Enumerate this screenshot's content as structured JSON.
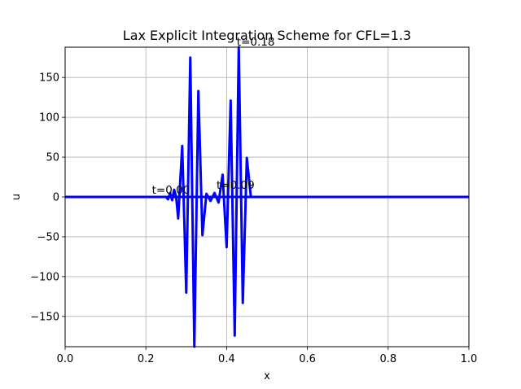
{
  "chart_data": {
    "type": "line",
    "title": "Lax Explicit Integration Scheme for  CFL=1.3",
    "xlabel": "x",
    "ylabel": "u",
    "xlim": [
      0.0,
      1.0
    ],
    "ylim": [
      -188,
      188
    ],
    "grid": true,
    "legend": "none",
    "x_ticks": [
      0.0,
      0.2,
      0.4,
      0.6,
      0.8,
      1.0
    ],
    "x_tick_labels": [
      "0.0",
      "0.2",
      "0.4",
      "0.6",
      "0.8",
      "1.0"
    ],
    "y_ticks": [
      150,
      100,
      50,
      0,
      -50,
      -100,
      -150
    ],
    "y_tick_labels": [
      "150",
      "100",
      "50",
      "0",
      "−50",
      "−100",
      "−150"
    ],
    "color": "#0000ff",
    "annotations": [
      {
        "text": "t=0.00",
        "x": 0.215,
        "y": 2
      },
      {
        "text": "t=0.09",
        "x": 0.375,
        "y": 8
      },
      {
        "text": "t=0.18",
        "x": 0.425,
        "y": 188
      }
    ],
    "series": [
      {
        "x": [
          0.0,
          0.24,
          0.25,
          0.255,
          0.26,
          0.265,
          0.27,
          0.275,
          0.28,
          0.29,
          0.3,
          0.31,
          0.32,
          0.33,
          0.34,
          0.35,
          0.36,
          0.37,
          0.38,
          0.39,
          0.4,
          0.41,
          0.42,
          0.43,
          0.44,
          0.45,
          0.46,
          1.0
        ],
        "values": [
          0,
          0,
          0,
          -3,
          5,
          -4,
          9,
          0,
          -27,
          64,
          -120,
          175,
          -188,
          133,
          -48,
          4,
          -5,
          5,
          -7,
          28,
          -63,
          121,
          -174,
          188,
          -133,
          49,
          0,
          0
        ]
      },
      {
        "x": [
          0.0,
          1.0
        ],
        "values": [
          0,
          0
        ]
      }
    ]
  }
}
